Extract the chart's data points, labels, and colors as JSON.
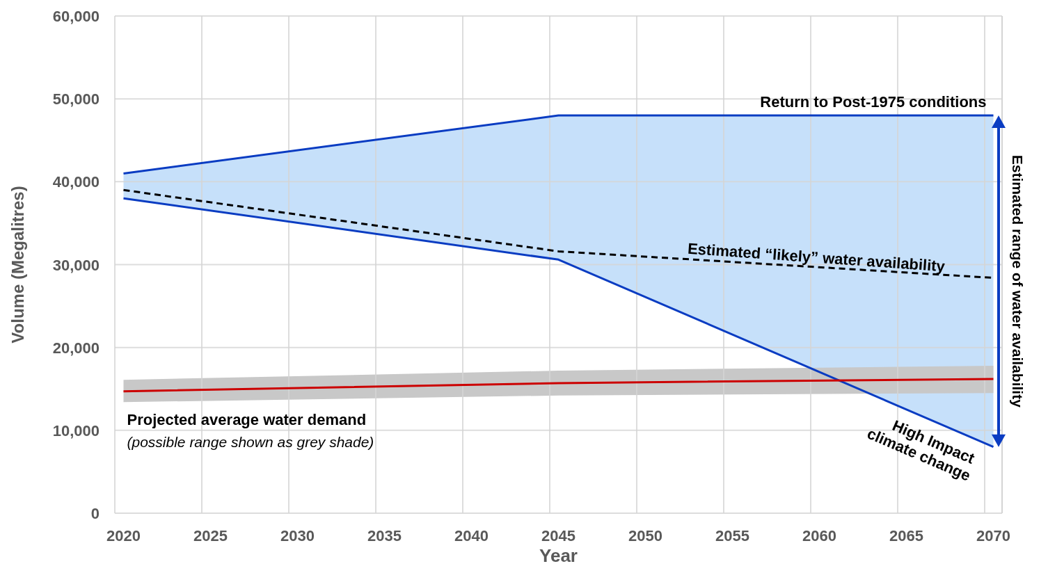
{
  "chart_data": {
    "type": "line",
    "xlabel": "Year",
    "ylabel": "Volume (Megalitres)",
    "x": [
      2020,
      2045,
      2070
    ],
    "xlim": [
      2019.5,
      2070.5
    ],
    "xticks": [
      2020,
      2025,
      2030,
      2035,
      2040,
      2045,
      2050,
      2055,
      2060,
      2065,
      2070
    ],
    "ylim": [
      0,
      60000
    ],
    "yticks": [
      0,
      {
        "value": 10000,
        "label": "10,000"
      },
      {
        "value": 20000,
        "label": "20,000"
      },
      {
        "value": 30000,
        "label": "30,000"
      },
      {
        "value": 40000,
        "label": "40,000"
      },
      {
        "value": 50000,
        "label": "50,000"
      },
      {
        "value": 60000,
        "label": "60,000"
      }
    ],
    "grid": true,
    "series": [
      {
        "name": "Return to Post-1975  conditions",
        "color": "#0a3cc2",
        "values": [
          41000,
          48000,
          48000
        ]
      },
      {
        "name": "High Impact climate change",
        "color": "#0a3cc2",
        "values": [
          38000,
          30600,
          8000
        ]
      },
      {
        "name": "Estimated “likely” water availability",
        "color": "#000000",
        "line_style": "dashed",
        "values": [
          39000,
          31600,
          28400
        ]
      },
      {
        "name": "Projected average water demand",
        "color": "#cc0000",
        "values": [
          14700,
          15700,
          16200
        ]
      },
      {
        "color": "#c6e0fa",
        "values": [
          null,
          null,
          null
        ],
        "lower": [
          38000,
          30600,
          8000
        ],
        "upper": [
          41000,
          48000,
          48000
        ]
      },
      {
        "color": "#c8c8c8",
        "values": [
          null,
          null,
          null
        ],
        "lower": [
          13400,
          14200,
          14500
        ],
        "upper": [
          16100,
          17200,
          17800
        ]
      }
    ],
    "annotations": [
      "(possible range shown as grey shade)",
      "Estimated range of water availability"
    ]
  }
}
